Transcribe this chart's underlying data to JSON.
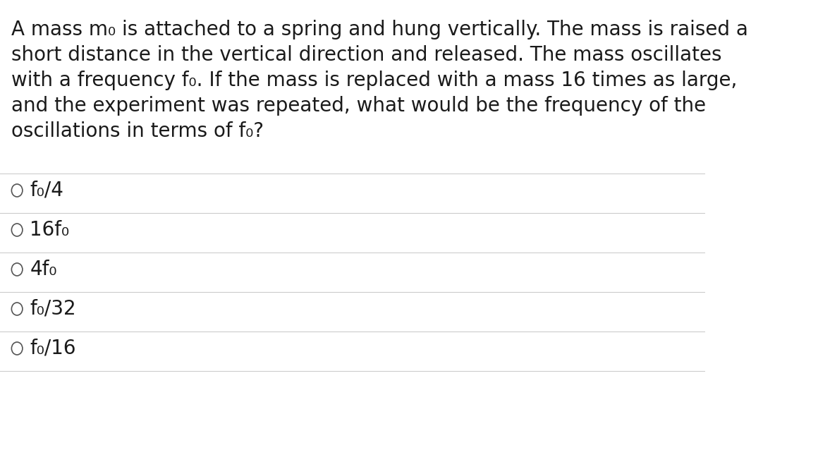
{
  "bg_color": "#ffffff",
  "text_color": "#1a1a1a",
  "question_lines": [
    "A mass m₀ is attached to a spring and hung vertically. The mass is raised a",
    "short distance in the vertical direction and released. The mass oscillates",
    "with a frequency f₀. If the mass is replaced with a mass 16 times as large,",
    "and the experiment was repeated, what would be the frequency of the",
    "oscillations in terms of f₀?"
  ],
  "options": [
    "f₀/4",
    "16f₀",
    "4f₀",
    "f₀/32",
    "f₀/16"
  ],
  "divider_color": "#cccccc",
  "circle_color": "#555555",
  "font_size_question": 20,
  "font_size_options": 20,
  "font_family": "DejaVu Sans"
}
